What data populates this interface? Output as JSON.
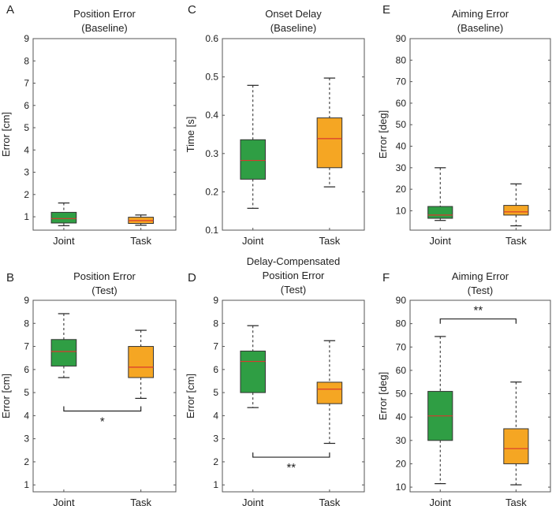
{
  "figure": {
    "colors": {
      "joint": "#2f9e44",
      "task": "#f5a623",
      "median": "#d9382e",
      "axis": "#555555",
      "whisker": "#222222"
    }
  },
  "chart_data": [
    {
      "panel": "A",
      "type": "box",
      "title": [
        "Position Error",
        "(Baseline)"
      ],
      "ylabel": "Error [cm]",
      "ylim": [
        0.4,
        9
      ],
      "yticks": [
        1,
        2,
        3,
        4,
        5,
        6,
        7,
        8,
        9
      ],
      "categories": [
        "Joint",
        "Task"
      ],
      "boxes": [
        {
          "name": "Joint",
          "min": 0.6,
          "q1": 0.72,
          "median": 0.92,
          "q3": 1.2,
          "max": 1.62
        },
        {
          "name": "Task",
          "min": 0.62,
          "q1": 0.7,
          "median": 0.83,
          "q3": 0.98,
          "max": 1.08
        }
      ]
    },
    {
      "panel": "C",
      "type": "box",
      "title": [
        "Onset Delay",
        "(Baseline)"
      ],
      "ylabel": "Time [s]",
      "ylim": [
        0.1,
        0.6
      ],
      "yticks": [
        0.1,
        0.2,
        0.3,
        0.4,
        0.5,
        0.6
      ],
      "categories": [
        "Joint",
        "Task"
      ],
      "boxes": [
        {
          "name": "Joint",
          "min": 0.157,
          "q1": 0.233,
          "median": 0.282,
          "q3": 0.336,
          "max": 0.478
        },
        {
          "name": "Task",
          "min": 0.213,
          "q1": 0.263,
          "median": 0.339,
          "q3": 0.393,
          "max": 0.497
        }
      ]
    },
    {
      "panel": "E",
      "type": "box",
      "title": [
        "Aiming Error",
        "(Baseline)"
      ],
      "ylabel": "Error [deg]",
      "ylim": [
        1,
        90
      ],
      "yticks": [
        10,
        20,
        30,
        40,
        50,
        60,
        70,
        80,
        90
      ],
      "categories": [
        "Joint",
        "Task"
      ],
      "boxes": [
        {
          "name": "Joint",
          "min": 5.5,
          "q1": 6.5,
          "median": 8,
          "q3": 12,
          "max": 30
        },
        {
          "name": "Task",
          "min": 3,
          "q1": 8,
          "median": 9.5,
          "q3": 12.5,
          "max": 22.5
        }
      ]
    },
    {
      "panel": "B",
      "type": "box",
      "title": [
        "Position Error",
        "(Test)"
      ],
      "ylabel": "Error [cm]",
      "ylim": [
        0.7,
        9
      ],
      "yticks": [
        1,
        2,
        3,
        4,
        5,
        6,
        7,
        8,
        9
      ],
      "categories": [
        "Joint",
        "Task"
      ],
      "boxes": [
        {
          "name": "Joint",
          "min": 5.65,
          "q1": 6.15,
          "median": 6.78,
          "q3": 7.3,
          "max": 8.42
        },
        {
          "name": "Task",
          "min": 4.75,
          "q1": 5.65,
          "median": 6.1,
          "q3": 7.0,
          "max": 7.7
        }
      ],
      "significance": {
        "label": "*",
        "y": 4.2,
        "position": "below"
      }
    },
    {
      "panel": "D",
      "type": "box",
      "title": [
        "Delay-Compensated",
        "Position Error",
        "(Test)"
      ],
      "ylabel": "Error [cm]",
      "ylim": [
        0.7,
        9
      ],
      "yticks": [
        1,
        2,
        3,
        4,
        5,
        6,
        7,
        8,
        9
      ],
      "categories": [
        "Joint",
        "Task"
      ],
      "boxes": [
        {
          "name": "Joint",
          "min": 4.35,
          "q1": 5.0,
          "median": 6.35,
          "q3": 6.8,
          "max": 7.9
        },
        {
          "name": "Task",
          "min": 2.8,
          "q1": 4.52,
          "median": 5.15,
          "q3": 5.45,
          "max": 7.25
        }
      ],
      "significance": {
        "label": "**",
        "y": 2.2,
        "position": "below"
      }
    },
    {
      "panel": "F",
      "type": "box",
      "title": [
        "Aiming Error",
        "(Test)"
      ],
      "ylabel": "Error [deg]",
      "ylim": [
        8,
        90
      ],
      "yticks": [
        10,
        20,
        30,
        40,
        50,
        60,
        70,
        80,
        90
      ],
      "categories": [
        "Joint",
        "Task"
      ],
      "boxes": [
        {
          "name": "Joint",
          "min": 11.5,
          "q1": 30,
          "median": 40.5,
          "q3": 51,
          "max": 74.5
        },
        {
          "name": "Task",
          "min": 11,
          "q1": 20,
          "median": 26.5,
          "q3": 35,
          "max": 55
        }
      ],
      "significance": {
        "label": "**",
        "y": 82,
        "position": "above"
      }
    }
  ]
}
